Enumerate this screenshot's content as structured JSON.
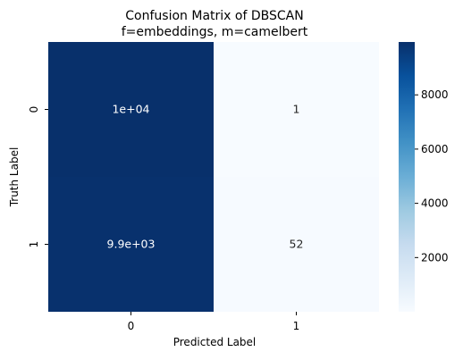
{
  "chart_data": {
    "type": "heatmap",
    "title": "Confusion Matrix of DBSCAN",
    "subtitle": "f=embeddings, m=camelbert",
    "xlabel": "Predicted Label",
    "ylabel": "Truth Label",
    "x_categories": [
      "0",
      "1"
    ],
    "y_categories": [
      "0",
      "1"
    ],
    "values": [
      [
        9950,
        1
      ],
      [
        9900,
        52
      ]
    ],
    "annotations": [
      [
        "1e+04",
        "1"
      ],
      [
        "9.9e+03",
        "52"
      ]
    ],
    "colormap": "Blues",
    "color_range": [
      1,
      9950
    ],
    "colorbar_ticks": [
      "2000",
      "4000",
      "6000",
      "8000"
    ],
    "colorbar_tick_values": [
      2000,
      4000,
      6000,
      8000
    ],
    "colors": {
      "low": "#f7fbff",
      "high": "#08306b"
    }
  }
}
